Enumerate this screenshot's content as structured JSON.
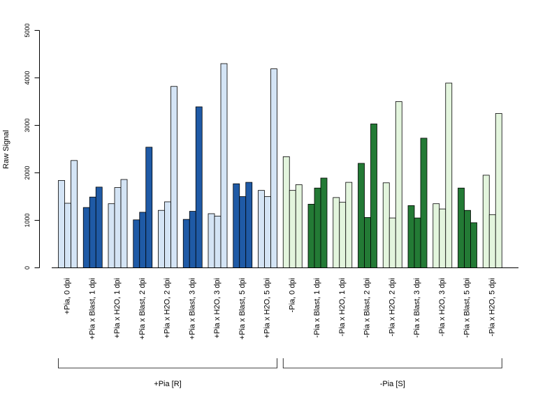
{
  "chart_data": {
    "type": "bar",
    "ylabel": "Raw Signal",
    "ylim": [
      0,
      5000
    ],
    "yticks": [
      0,
      1000,
      2000,
      3000,
      4000,
      5000
    ],
    "grid": false,
    "colors": {
      "pia_light": "#d4e4f5",
      "pia_dark": "#1f5aa6",
      "nopia_light": "#e3f5dd",
      "nopia_dark": "#237a35",
      "stroke": "#000000"
    },
    "categories": [
      {
        "label": "+Pia, 0 dpi",
        "values": [
          1840,
          1360,
          2260
        ],
        "color": "#d4e4f5"
      },
      {
        "label": "+Pia x Blast, 1 dpi",
        "values": [
          1270,
          1490,
          1700
        ],
        "color": "#1f5aa6"
      },
      {
        "label": "+Pia x H2O, 1 dpi",
        "values": [
          1350,
          1690,
          1860
        ],
        "color": "#d4e4f5"
      },
      {
        "label": "+Pia x Blast, 2 dpi",
        "values": [
          1010,
          1170,
          2540
        ],
        "color": "#1f5aa6"
      },
      {
        "label": "+Pia x H2O, 2 dpi",
        "values": [
          1210,
          1390,
          3820
        ],
        "color": "#d4e4f5"
      },
      {
        "label": "+Pia x Blast, 3 dpi",
        "values": [
          1020,
          1190,
          3390
        ],
        "color": "#1f5aa6"
      },
      {
        "label": "+Pia x H2O, 3 dpi",
        "values": [
          1140,
          1090,
          4300
        ],
        "color": "#d4e4f5"
      },
      {
        "label": "+Pia x Blast, 5 dpi",
        "values": [
          1770,
          1500,
          1800
        ],
        "color": "#1f5aa6"
      },
      {
        "label": "+Pia x H2O, 5 dpi",
        "values": [
          1630,
          1500,
          4190
        ],
        "color": "#d4e4f5"
      },
      {
        "label": "-Pia, 0 dpi",
        "values": [
          2340,
          1630,
          1750
        ],
        "color": "#e3f5dd"
      },
      {
        "label": "-Pia x Blast, 1 dpi",
        "values": [
          1340,
          1680,
          1890
        ],
        "color": "#237a35"
      },
      {
        "label": "-Pia x H2O, 1 dpi",
        "values": [
          1480,
          1380,
          1800
        ],
        "color": "#e3f5dd"
      },
      {
        "label": "-Pia x Blast, 2 dpi",
        "values": [
          2200,
          1060,
          3030
        ],
        "color": "#237a35"
      },
      {
        "label": "-Pia x H2O, 2 dpi",
        "values": [
          1790,
          1050,
          3500
        ],
        "color": "#e3f5dd"
      },
      {
        "label": "-Pia x Blast, 3 dpi",
        "values": [
          1310,
          1050,
          2730
        ],
        "color": "#237a35"
      },
      {
        "label": "-Pia x H2O, 3 dpi",
        "values": [
          1350,
          1240,
          3890
        ],
        "color": "#e3f5dd"
      },
      {
        "label": "-Pia x Blast, 5 dpi",
        "values": [
          1680,
          1210,
          950
        ],
        "color": "#237a35"
      },
      {
        "label": "-Pia x H2O, 5 dpi",
        "values": [
          1950,
          1120,
          3250
        ],
        "color": "#e3f5dd"
      }
    ],
    "groups": [
      {
        "label": "+Pia [R]",
        "from": 0,
        "to": 8
      },
      {
        "label": "-Pia [S]",
        "from": 9,
        "to": 17
      }
    ]
  }
}
